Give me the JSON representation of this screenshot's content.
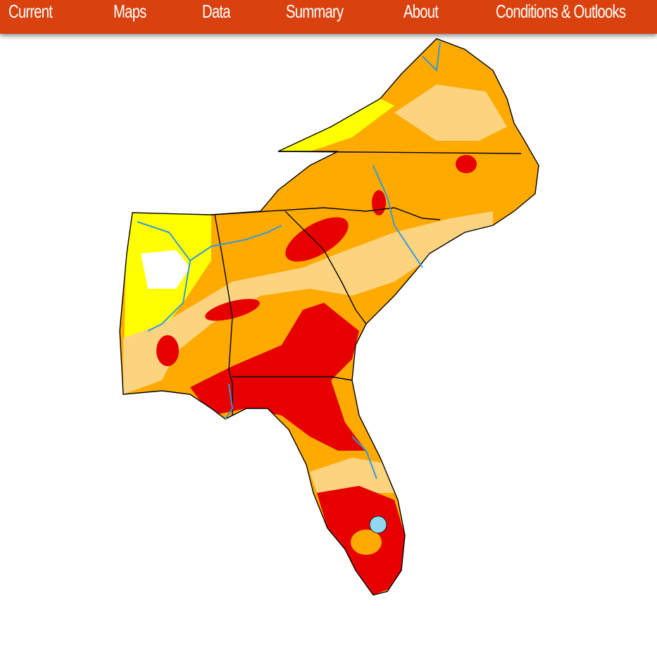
{
  "nav": {
    "items": [
      "Current",
      "Maps",
      "Data",
      "Summary",
      "About",
      "Conditions & Outlooks"
    ]
  }
}
